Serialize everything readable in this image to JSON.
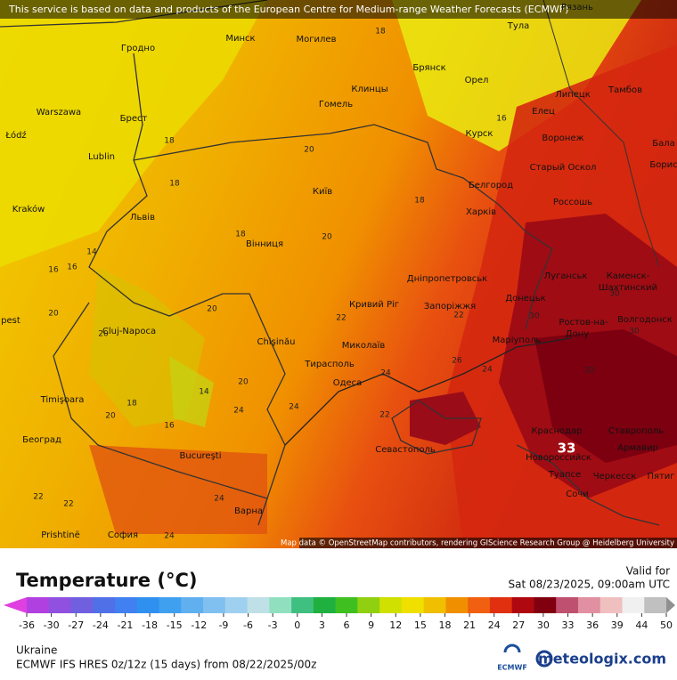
{
  "header": {
    "notice": "This service is based on data and products of the European Centre for Medium-range Weather Forecasts (ECMWF)"
  },
  "map": {
    "attribution": "Map data © OpenStreetMap contributors, rendering GIScience Research Group @ Heidelberg University",
    "cities": [
      "Рязань",
      "Минск",
      "Могилев",
      "Гродно",
      "Тула",
      "Брянск",
      "Орел",
      "Клинцы",
      "Warszawa",
      "Брест",
      "Гомель",
      "Липецк",
      "Тамбов",
      "Łódź",
      "Lublin",
      "Курск",
      "Елец",
      "Воронеж",
      "Старый Оскол",
      "Бала",
      "Борис",
      "Київ",
      "Белгород",
      "Kraków",
      "Львів",
      "Харків",
      "Россошь",
      "Вінниця",
      "Луганськ",
      "Дніпропетровськ",
      "Каменск-",
      "Шахтинский",
      "Донецьк",
      "Кривий Ріг",
      "Запоріжжя",
      "pest",
      "Chişinău",
      "Миколаїв",
      "Маріуполь",
      "Ростов-на-",
      "Дону",
      "Волгодонск",
      "Cluj-Napoca",
      "Тирасполь",
      "Одеса",
      "Timişoara",
      "Краснодар",
      "Ставрополь",
      "Београд",
      "Bucureşti",
      "Севастополь",
      "Новороссийск",
      "Армавир",
      "Туапсе",
      "Черкесск",
      "Пятиг",
      "Сочи",
      "Варна",
      "Prishtinë",
      "София"
    ],
    "contour_labels": [
      "18",
      "16",
      "18",
      "18",
      "20",
      "18",
      "18",
      "20",
      "16",
      "16",
      "14",
      "20",
      "20",
      "22",
      "22",
      "24",
      "24",
      "24",
      "26",
      "30",
      "30",
      "32",
      "30",
      "20",
      "18",
      "16",
      "14",
      "20",
      "24",
      "24",
      "22",
      "22",
      "24",
      "22",
      "20"
    ],
    "max_label": "33"
  },
  "legend": {
    "title": "Temperature (°C)",
    "valid_label": "Valid for",
    "valid_time": "Sat 08/23/2025, 09:00am UTC",
    "ticks": [
      -36,
      -30,
      -27,
      -24,
      -21,
      -18,
      -15,
      -12,
      -9,
      -6,
      -3,
      0,
      3,
      6,
      9,
      12,
      15,
      18,
      21,
      24,
      27,
      30,
      33,
      36,
      39,
      44,
      50
    ]
  },
  "footer": {
    "region": "Ukraine",
    "model": "ECMWF IFS HRES 0z/12z (15 days) from  08/22/2025/00z",
    "ecmwf_logo": "ECMWF",
    "brand": "meteologix.com"
  }
}
